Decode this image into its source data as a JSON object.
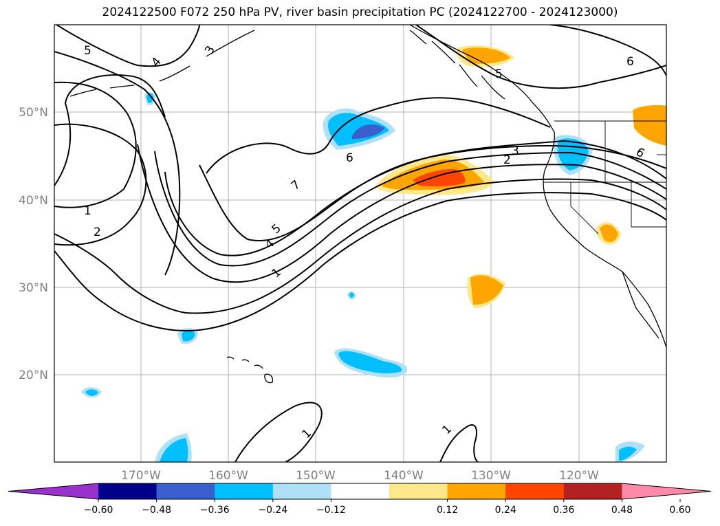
{
  "title": "2024122500 F072 250 hPa PV, river basin precipitation PC (2024122700 - 2024123000)",
  "map": {
    "lat_labels": [
      "50°N",
      "40°N",
      "30°N",
      "20°N"
    ],
    "lon_labels": [
      "170°W",
      "160°W",
      "150°W",
      "140°W",
      "130°W",
      "120°W"
    ],
    "contour_labels": [
      "5",
      "4",
      "3",
      "5",
      "6",
      "1",
      "2",
      "6",
      "7",
      "5",
      "4",
      "1",
      "3",
      "2",
      "6",
      "1",
      "1"
    ]
  },
  "colorbar": {
    "ticks": [
      "−0.60",
      "−0.48",
      "−0.36",
      "−0.24",
      "−0.12",
      "0.12",
      "0.24",
      "0.36",
      "0.48",
      "0.60"
    ],
    "colors": [
      "#9932cc",
      "#00008b",
      "#3a5fcd",
      "#00bfff",
      "#aee0f8",
      "#ffffff",
      "#ffe88a",
      "#ffa500",
      "#ff4500",
      "#b22222",
      "#ff89a8"
    ]
  }
}
